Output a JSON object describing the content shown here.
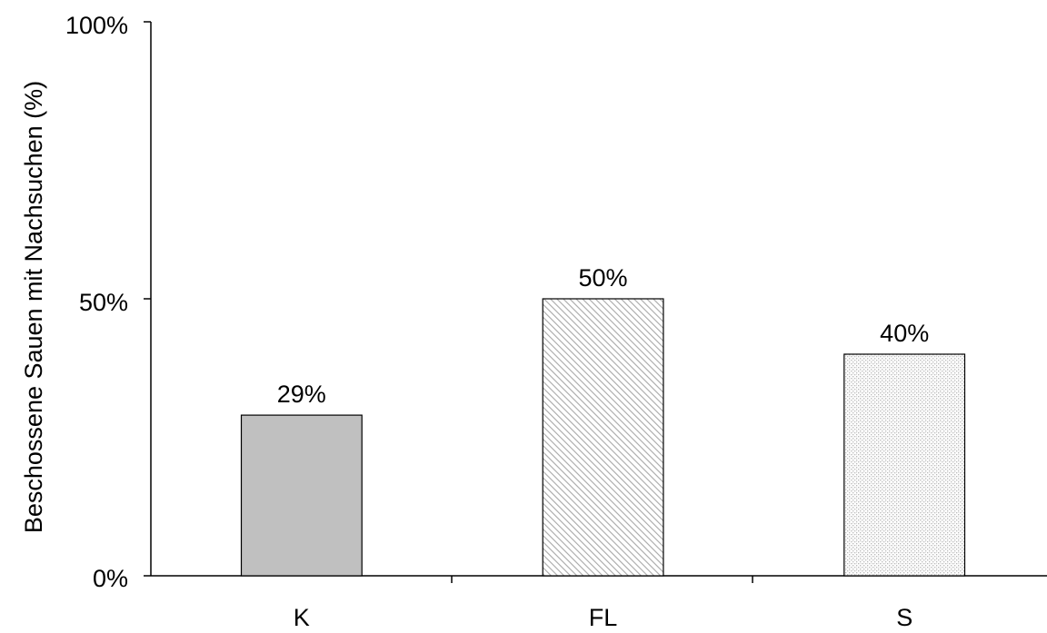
{
  "chart_data": {
    "type": "bar",
    "categories": [
      "K",
      "FL",
      "S"
    ],
    "values": [
      29,
      50,
      40
    ],
    "data_labels": [
      "29%",
      "50%",
      "40%"
    ],
    "ylabel": "Beschossene Sauen mit Nachsuchen (%)",
    "xlabel": "",
    "ylim": [
      0,
      100
    ],
    "yticks": [
      0,
      50,
      100
    ],
    "ytick_labels": [
      "0%",
      "50%",
      "100%"
    ],
    "grid": false,
    "legend": "none",
    "bar_fills": [
      "solid-gray",
      "diagonal-hatch",
      "dotted-stipple"
    ],
    "colors": {
      "solid": "#c0c0c0",
      "hatch": "#a8a8a8",
      "stipple": "#b8b8b8",
      "axis": "#000000",
      "background": "#ffffff"
    }
  }
}
